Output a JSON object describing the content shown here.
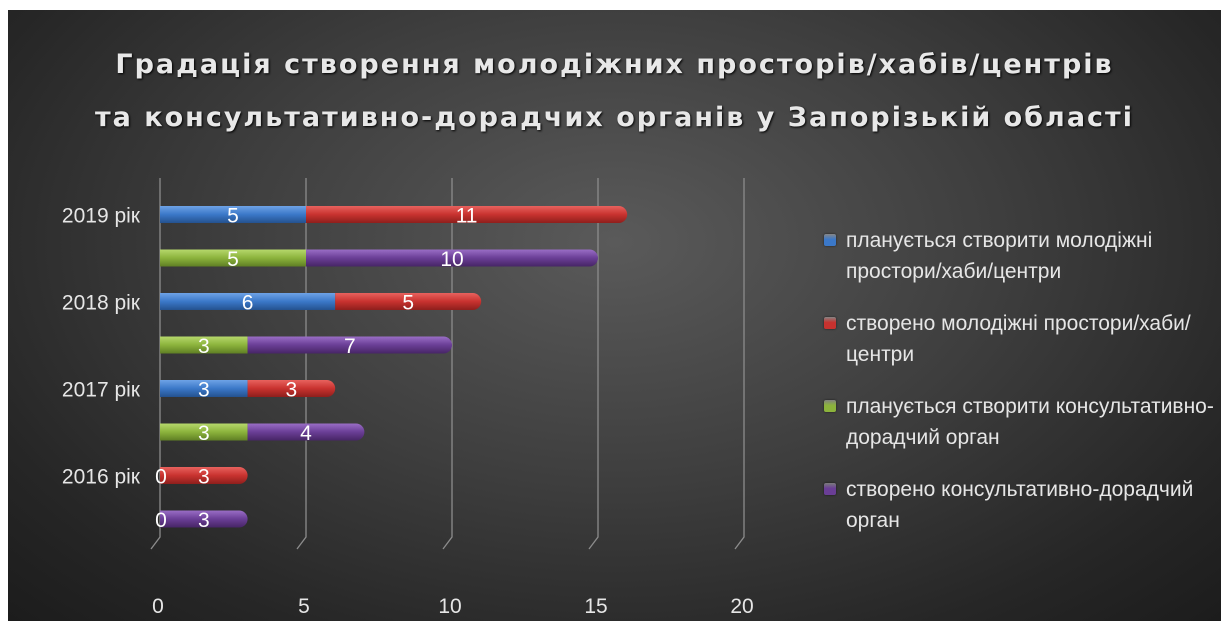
{
  "chart_data": {
    "type": "bar",
    "orientation": "horizontal",
    "stacked": true,
    "title_lines": [
      "Градація створення молодіжних просторів/хабів/центрів",
      "та консультативно-дорадчих  органів у Запорізькій області"
    ],
    "categories": [
      "2019 рік",
      "2018 рік",
      "2017 рік",
      "2016 рік"
    ],
    "rows": [
      {
        "category": "2019 рік",
        "group": "spaces",
        "values": [
          5,
          11
        ]
      },
      {
        "category": "2019 рік",
        "group": "bodies",
        "values": [
          5,
          10
        ]
      },
      {
        "category": "2018 рік",
        "group": "spaces",
        "values": [
          6,
          5
        ]
      },
      {
        "category": "2018 рік",
        "group": "bodies",
        "values": [
          3,
          7
        ]
      },
      {
        "category": "2017 рік",
        "group": "spaces",
        "values": [
          3,
          3
        ]
      },
      {
        "category": "2017 рік",
        "group": "bodies",
        "values": [
          3,
          4
        ]
      },
      {
        "category": "2016 рік",
        "group": "spaces",
        "values": [
          0,
          3
        ]
      },
      {
        "category": "2016 рік",
        "group": "bodies",
        "values": [
          0,
          3
        ]
      }
    ],
    "series": [
      {
        "name": "планується створити молодіжні простори/хаби/центри",
        "color": "#3b78c8",
        "group": "spaces",
        "stack_index": 0
      },
      {
        "name": "створено молодіжні простори/хаби/центри",
        "color": "#c8322f",
        "group": "spaces",
        "stack_index": 1
      },
      {
        "name": "планується створити консультативно-дорадчий орган",
        "color": "#8cb33c",
        "group": "bodies",
        "stack_index": 0
      },
      {
        "name": "створено консультативно-дорадчий орган",
        "color": "#6a3e96",
        "group": "bodies",
        "stack_index": 1
      }
    ],
    "xlim": [
      0,
      20
    ],
    "xticks": [
      0,
      5,
      10,
      15,
      20
    ],
    "grid": true,
    "legend_position": "right",
    "data_labels": true
  }
}
